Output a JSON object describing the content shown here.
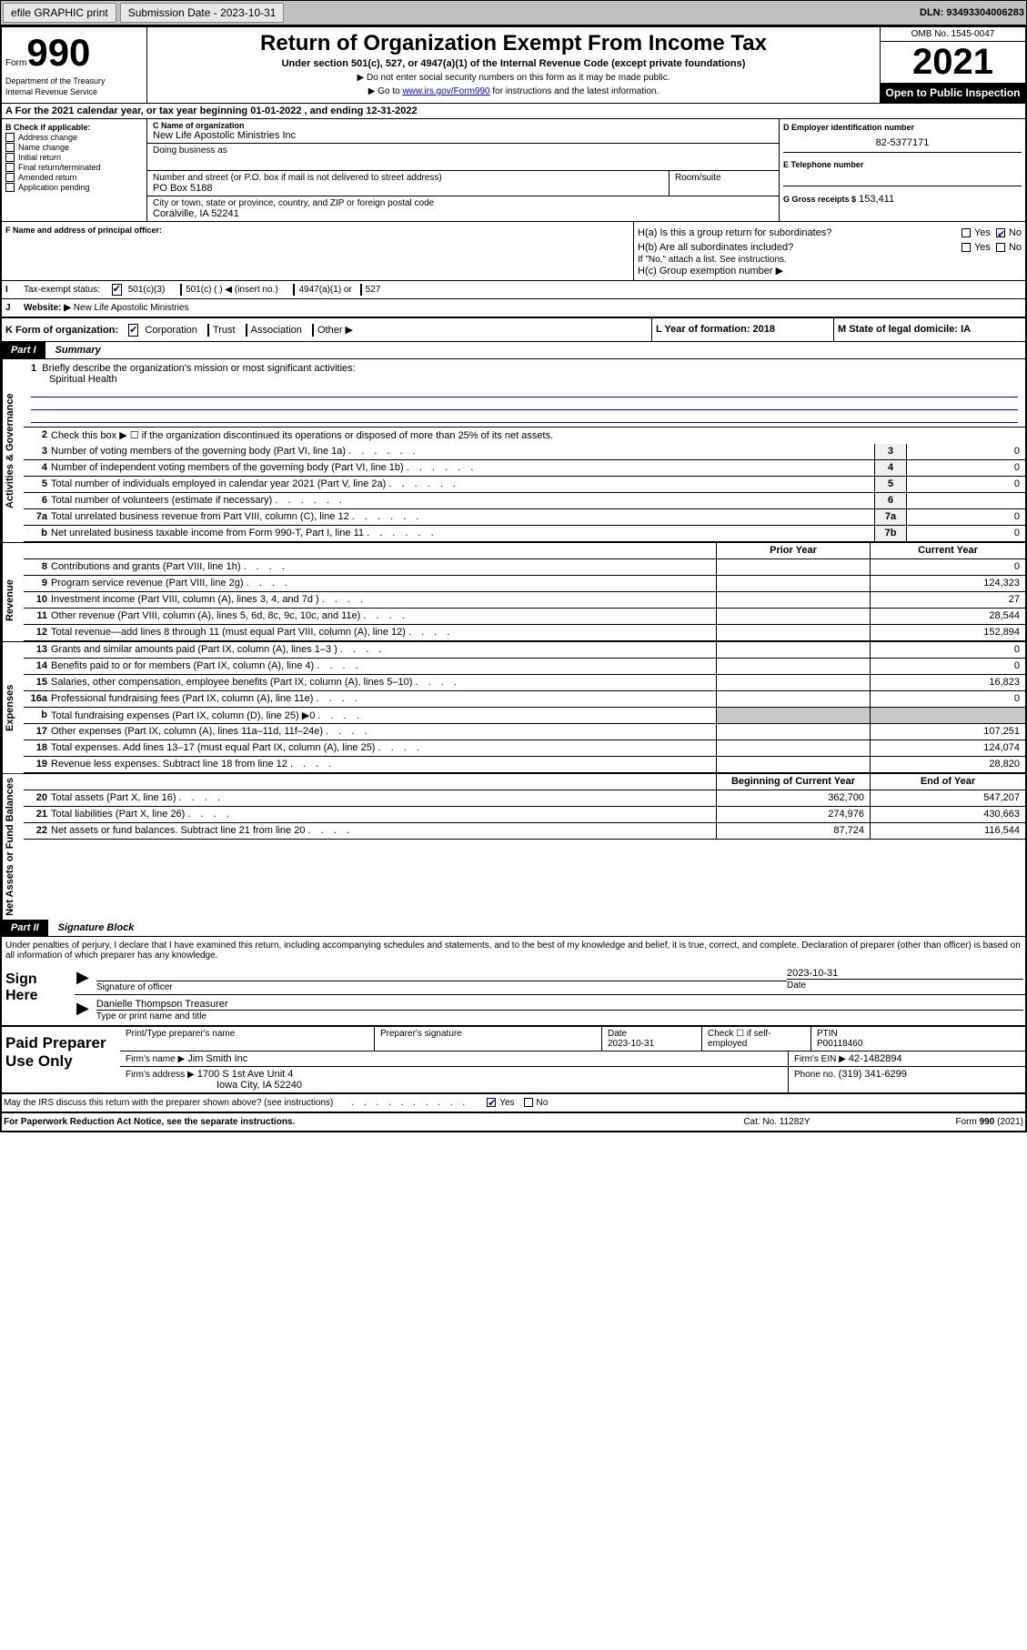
{
  "topbar": {
    "efile": "efile GRAPHIC print",
    "submission_label": "Submission Date - 2023-10-31",
    "dln": "DLN: 93493304006283"
  },
  "header": {
    "form_word": "Form",
    "form_number": "990",
    "title": "Return of Organization Exempt From Income Tax",
    "subtitle": "Under section 501(c), 527, or 4947(a)(1) of the Internal Revenue Code (except private foundations)",
    "instruction1": "▶ Do not enter social security numbers on this form as it may be made public.",
    "instruction2_prefix": "▶ Go to ",
    "instruction2_link": "www.irs.gov/Form990",
    "instruction2_suffix": " for instructions and the latest information.",
    "dept": "Department of the Treasury",
    "irs": "Internal Revenue Service",
    "omb": "OMB No. 1545-0047",
    "year": "2021",
    "open": "Open to Public Inspection"
  },
  "taxyear": "For the 2021 calendar year, or tax year beginning 01-01-2022    , and ending 12-31-2022",
  "section_b": {
    "label": "B Check if applicable:",
    "items": [
      "Address change",
      "Name change",
      "Initial return",
      "Final return/terminated",
      "Amended return",
      "Application pending"
    ]
  },
  "section_c": {
    "name_label": "C Name of organization",
    "name": "New Life Apostolic Ministries Inc",
    "dba_label": "Doing business as",
    "street_label": "Number and street (or P.O. box if mail is not delivered to street address)",
    "room_label": "Room/suite",
    "street": "PO Box 5188",
    "city_label": "City or town, state or province, country, and ZIP or foreign postal code",
    "city": "Coralville, IA  52241"
  },
  "section_d": {
    "label": "D Employer identification number",
    "ein": "82-5377171"
  },
  "section_e": {
    "label": "E Telephone number"
  },
  "section_g": {
    "label": "G Gross receipts $",
    "value": "153,411"
  },
  "section_f": {
    "label": "F  Name and address of principal officer:"
  },
  "section_h": {
    "ha_label": "H(a)  Is this a group return for subordinates?",
    "hb_label": "H(b)  Are all subordinates included?",
    "hb_note": "If \"No,\" attach a list. See instructions.",
    "hc_label": "H(c)  Group exemption number ▶",
    "yes": "Yes",
    "no": "No"
  },
  "section_i": {
    "label": "Tax-exempt status:",
    "opts": [
      "501(c)(3)",
      "501(c) (  ) ◀ (insert no.)",
      "4947(a)(1) or",
      "527"
    ]
  },
  "section_j": {
    "label": "Website: ▶",
    "value": "New Life Apostolic Ministries"
  },
  "section_k": {
    "label": "K Form of organization:",
    "opts": [
      "Corporation",
      "Trust",
      "Association",
      "Other ▶"
    ]
  },
  "section_l": {
    "label": "L Year of formation: 2018"
  },
  "section_m": {
    "label": "M State of legal domicile: IA"
  },
  "part1": {
    "header": "Part I",
    "title": "Summary",
    "q1": "Briefly describe the organization's mission or most significant activities:",
    "q1_answer": "Spiritual Health",
    "q2": "Check this box ▶ ☐  if the organization discontinued its operations or disposed of more than 25% of its net assets.",
    "rows": [
      {
        "n": "3",
        "t": "Number of voting members of the governing body (Part VI, line 1a)",
        "box": "3",
        "v": "0"
      },
      {
        "n": "4",
        "t": "Number of independent voting members of the governing body (Part VI, line 1b)",
        "box": "4",
        "v": "0"
      },
      {
        "n": "5",
        "t": "Total number of individuals employed in calendar year 2021 (Part V, line 2a)",
        "box": "5",
        "v": "0"
      },
      {
        "n": "6",
        "t": "Total number of volunteers (estimate if necessary)",
        "box": "6",
        "v": ""
      },
      {
        "n": "7a",
        "t": "Total unrelated business revenue from Part VIII, column (C), line 12",
        "box": "7a",
        "v": "0"
      },
      {
        "n": "b",
        "t": "Net unrelated business taxable income from Form 990-T, Part I, line 11",
        "box": "7b",
        "v": "0"
      }
    ],
    "prior_header": "Prior Year",
    "current_header": "Current Year",
    "revenue_rows": [
      {
        "n": "8",
        "t": "Contributions and grants (Part VIII, line 1h)",
        "p": "",
        "c": "0"
      },
      {
        "n": "9",
        "t": "Program service revenue (Part VIII, line 2g)",
        "p": "",
        "c": "124,323"
      },
      {
        "n": "10",
        "t": "Investment income (Part VIII, column (A), lines 3, 4, and 7d )",
        "p": "",
        "c": "27"
      },
      {
        "n": "11",
        "t": "Other revenue (Part VIII, column (A), lines 5, 6d, 8c, 9c, 10c, and 11e)",
        "p": "",
        "c": "28,544"
      },
      {
        "n": "12",
        "t": "Total revenue—add lines 8 through 11 (must equal Part VIII, column (A), line 12)",
        "p": "",
        "c": "152,894"
      }
    ],
    "expense_rows": [
      {
        "n": "13",
        "t": "Grants and similar amounts paid (Part IX, column (A), lines 1–3 )",
        "p": "",
        "c": "0"
      },
      {
        "n": "14",
        "t": "Benefits paid to or for members (Part IX, column (A), line 4)",
        "p": "",
        "c": "0"
      },
      {
        "n": "15",
        "t": "Salaries, other compensation, employee benefits (Part IX, column (A), lines 5–10)",
        "p": "",
        "c": "16,823"
      },
      {
        "n": "16a",
        "t": "Professional fundraising fees (Part IX, column (A), line 11e)",
        "p": "",
        "c": "0"
      },
      {
        "n": "b",
        "t": "Total fundraising expenses (Part IX, column (D), line 25) ▶0",
        "p": "grey",
        "c": "grey"
      },
      {
        "n": "17",
        "t": "Other expenses (Part IX, column (A), lines 11a–11d, 11f–24e)",
        "p": "",
        "c": "107,251"
      },
      {
        "n": "18",
        "t": "Total expenses. Add lines 13–17 (must equal Part IX, column (A), line 25)",
        "p": "",
        "c": "124,074"
      },
      {
        "n": "19",
        "t": "Revenue less expenses. Subtract line 18 from line 12",
        "p": "",
        "c": "28,820"
      }
    ],
    "begin_header": "Beginning of Current Year",
    "end_header": "End of Year",
    "asset_rows": [
      {
        "n": "20",
        "t": "Total assets (Part X, line 16)",
        "p": "362,700",
        "c": "547,207"
      },
      {
        "n": "21",
        "t": "Total liabilities (Part X, line 26)",
        "p": "274,976",
        "c": "430,663"
      },
      {
        "n": "22",
        "t": "Net assets or fund balances. Subtract line 21 from line 20",
        "p": "87,724",
        "c": "116,544"
      }
    ],
    "vert_labels": {
      "governance": "Activities & Governance",
      "revenue": "Revenue",
      "expenses": "Expenses",
      "assets": "Net Assets or Fund Balances"
    }
  },
  "part2": {
    "header": "Part II",
    "title": "Signature Block",
    "perjury": "Under penalties of perjury, I declare that I have examined this return, including accompanying schedules and statements, and to the best of my knowledge and belief, it is true, correct, and complete. Declaration of preparer (other than officer) is based on all information of which preparer has any knowledge."
  },
  "sign": {
    "label": "Sign Here",
    "sig_officer": "Signature of officer",
    "date": "2023-10-31",
    "date_label": "Date",
    "name": "Danielle Thompson  Treasurer",
    "name_label": "Type or print name and title"
  },
  "paid": {
    "label": "Paid Preparer Use Only",
    "col_preparer": "Print/Type preparer's name",
    "col_sig": "Preparer's signature",
    "col_date": "Date",
    "date": "2023-10-31",
    "col_check": "Check ☐ if self-employed",
    "col_ptin": "PTIN",
    "ptin": "P00118460",
    "firm_name_label": "Firm's name    ▶",
    "firm_name": "Jim Smith Inc",
    "firm_ein_label": "Firm's EIN ▶",
    "firm_ein": "42-1482894",
    "firm_addr_label": "Firm's address ▶",
    "firm_addr1": "1700 S 1st Ave Unit 4",
    "firm_addr2": "Iowa City, IA  52240",
    "phone_label": "Phone no.",
    "phone": "(319) 341-6299"
  },
  "footer": {
    "discuss": "May the IRS discuss this return with the preparer shown above? (see instructions)",
    "yes": "Yes",
    "no": "No",
    "paperwork": "For Paperwork Reduction Act Notice, see the separate instructions.",
    "cat": "Cat. No. 11282Y",
    "form": "Form 990 (2021)"
  },
  "dots": ".  .  .  .  .  ."
}
